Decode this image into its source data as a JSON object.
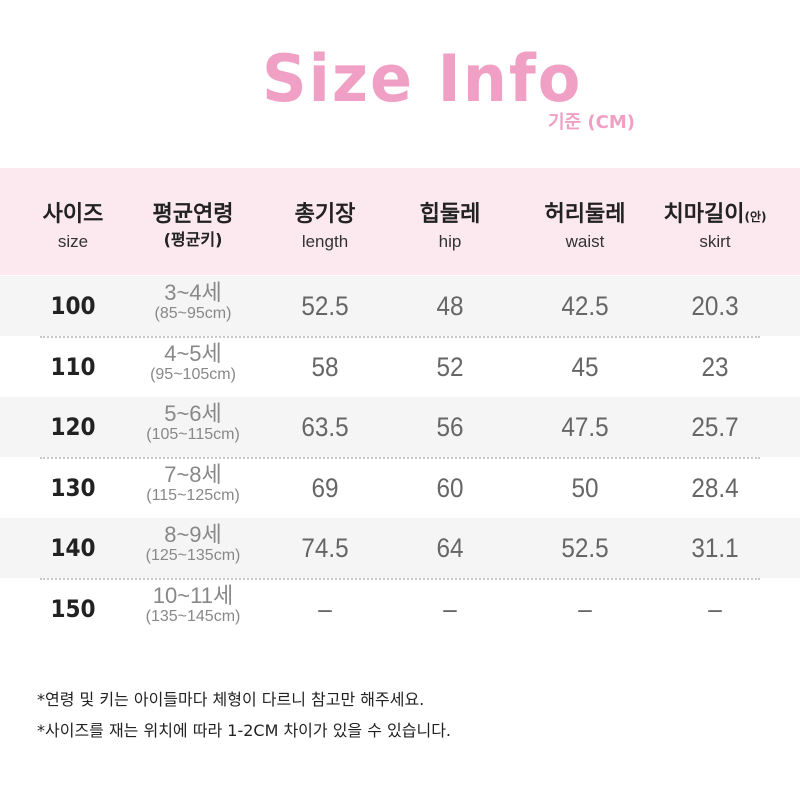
{
  "colors": {
    "accent": "#f0a0c4",
    "header_bg": "#fce9ef",
    "alt_row": "#f5f5f5"
  },
  "title": "Size Info",
  "unit": "기준 (CM)",
  "headers": [
    {
      "ko": "사이즈",
      "en": "size"
    },
    {
      "ko": "평균연령",
      "ko2": "(평균키)"
    },
    {
      "ko": "총기장",
      "en": "length"
    },
    {
      "ko": "힙둘레",
      "en": "hip"
    },
    {
      "ko": "허리둘레",
      "en": "waist"
    },
    {
      "ko": "치마길이",
      "suffix": "(안)",
      "en": "skirt"
    }
  ],
  "rows": [
    {
      "size": "100",
      "age": "3~4세",
      "height": "(85~95cm)",
      "length": "52.5",
      "hip": "48",
      "waist": "42.5",
      "skirt": "20.3"
    },
    {
      "size": "110",
      "age": "4~5세",
      "height": "(95~105cm)",
      "length": "58",
      "hip": "52",
      "waist": "45",
      "skirt": "23"
    },
    {
      "size": "120",
      "age": "5~6세",
      "height": "(105~115cm)",
      "length": "63.5",
      "hip": "56",
      "waist": "47.5",
      "skirt": "25.7"
    },
    {
      "size": "130",
      "age": "7~8세",
      "height": "(115~125cm)",
      "length": "69",
      "hip": "60",
      "waist": "50",
      "skirt": "28.4"
    },
    {
      "size": "140",
      "age": "8~9세",
      "height": "(125~135cm)",
      "length": "74.5",
      "hip": "64",
      "waist": "52.5",
      "skirt": "31.1"
    },
    {
      "size": "150",
      "age": "10~11세",
      "height": "(135~145cm)",
      "length": "–",
      "hip": "–",
      "waist": "–",
      "skirt": "–"
    }
  ],
  "notes": [
    "*연령 및 키는 아이들마다 체형이 다르니 참고만 해주세요.",
    "*사이즈를 재는 위치에 따라 1-2CM 차이가 있을 수 있습니다."
  ]
}
